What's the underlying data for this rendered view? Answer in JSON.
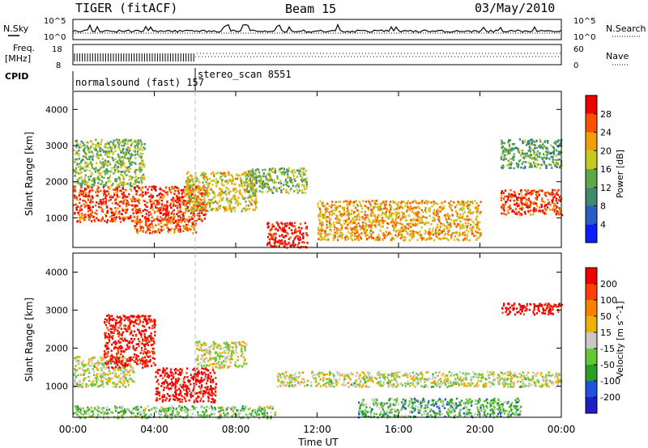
{
  "header": {
    "station": "TIGER (fitACF)",
    "beam": "Beam 15",
    "date": "03/May/2010"
  },
  "strips": {
    "nsky_label": "N.Sky",
    "nsearch_label": "N.Search",
    "freq_label_1": "Freq.",
    "freq_label_2": "[MHz]",
    "nave_label": "Nave",
    "cpid_label": "CPID",
    "nsky_ticks": [
      "10^5",
      "10^0"
    ],
    "nsearch_ticks": [
      "10^5",
      "10^0"
    ],
    "freq_ticks": [
      "18",
      "8"
    ],
    "nave_ticks": [
      "60",
      "0"
    ],
    "cpid_segments": [
      {
        "name": "normalsound (fast)",
        "id": "157",
        "start_hr": 0,
        "end_hr": 6.0
      },
      {
        "name": "stereo_scan",
        "id": "8551",
        "start_hr": 6.0,
        "end_hr": 24
      }
    ]
  },
  "axes": {
    "ylabel": "Slant Range [km]",
    "xlabel": "Time UT",
    "xticks": [
      "00:00",
      "04:00",
      "08:00",
      "12:00",
      "16:00",
      "20:00",
      "00:00"
    ],
    "yticks": [
      "1000",
      "2000",
      "3000",
      "4000"
    ]
  },
  "power_bar": {
    "label": "Power [dB]",
    "ticks": [
      "4",
      "8",
      "12",
      "16",
      "20",
      "24",
      "28"
    ],
    "colors": [
      "#0a1eff",
      "#2a5cc8",
      "#3c8c6c",
      "#5ca846",
      "#c8c81e",
      "#f0a000",
      "#ff5000",
      "#f00000"
    ]
  },
  "velocity_bar": {
    "label": "Velocity [m s^-1]",
    "ticks": [
      "200",
      "100",
      "50",
      "15",
      "-15",
      "-50",
      "-100",
      "-200"
    ],
    "colors": [
      "#1e1ec8",
      "#2050e0",
      "#28a028",
      "#64c832",
      "#c8c8c8",
      "#f0b000",
      "#ff8000",
      "#ff4000",
      "#f00000"
    ]
  },
  "chart_data": {
    "type": "heatmap",
    "title": "TIGER (fitACF) Beam 15 03/May/2010",
    "xlabel": "Time UT",
    "ylabel": "Slant Range [km]",
    "xlim_hours": [
      0,
      24
    ],
    "ylim_km": [
      180,
      4500
    ],
    "panels": [
      {
        "name": "Power",
        "units": "dB",
        "zlim": [
          0,
          30
        ],
        "echo_regions": [
          {
            "t0": 0.0,
            "t1": 6.5,
            "r0": 900,
            "r1": 1900,
            "level": 26
          },
          {
            "t0": 0.0,
            "t1": 3.5,
            "r0": 1900,
            "r1": 3200,
            "level": 14
          },
          {
            "t0": 3.0,
            "t1": 6.0,
            "r0": 600,
            "r1": 1000,
            "level": 24
          },
          {
            "t0": 5.5,
            "t1": 9.0,
            "r0": 1200,
            "r1": 2300,
            "level": 18
          },
          {
            "t0": 8.5,
            "t1": 11.5,
            "r0": 1700,
            "r1": 2400,
            "level": 14
          },
          {
            "t0": 9.5,
            "t1": 11.5,
            "r0": 180,
            "r1": 900,
            "level": 28
          },
          {
            "t0": 12.0,
            "t1": 20.0,
            "r0": 400,
            "r1": 1500,
            "level": 20
          },
          {
            "t0": 21.0,
            "t1": 24.0,
            "r0": 1100,
            "r1": 1800,
            "level": 26
          },
          {
            "t0": 21.0,
            "t1": 24.0,
            "r0": 2400,
            "r1": 3200,
            "level": 12
          }
        ]
      },
      {
        "name": "Velocity",
        "units": "m s^-1",
        "zlim": [
          -200,
          200
        ],
        "echo_regions": [
          {
            "t0": 0.0,
            "t1": 3.0,
            "r0": 1000,
            "r1": 1800,
            "level": 0
          },
          {
            "t0": 1.5,
            "t1": 4.0,
            "r0": 1500,
            "r1": 2900,
            "level": 180
          },
          {
            "t0": 4.0,
            "t1": 7.0,
            "r0": 600,
            "r1": 1500,
            "level": 200
          },
          {
            "t0": 6.0,
            "t1": 8.5,
            "r0": 1500,
            "r1": 2200,
            "level": 0
          },
          {
            "t0": 0.0,
            "t1": 10.0,
            "r0": 180,
            "r1": 500,
            "level": -40
          },
          {
            "t0": 10.0,
            "t1": 24.0,
            "r0": 1000,
            "r1": 1400,
            "level": 0
          },
          {
            "t0": 14.0,
            "t1": 22.0,
            "r0": 200,
            "r1": 700,
            "level": -60
          },
          {
            "t0": 21.0,
            "t1": 24.0,
            "r0": 2900,
            "r1": 3200,
            "level": 200
          }
        ]
      }
    ]
  }
}
